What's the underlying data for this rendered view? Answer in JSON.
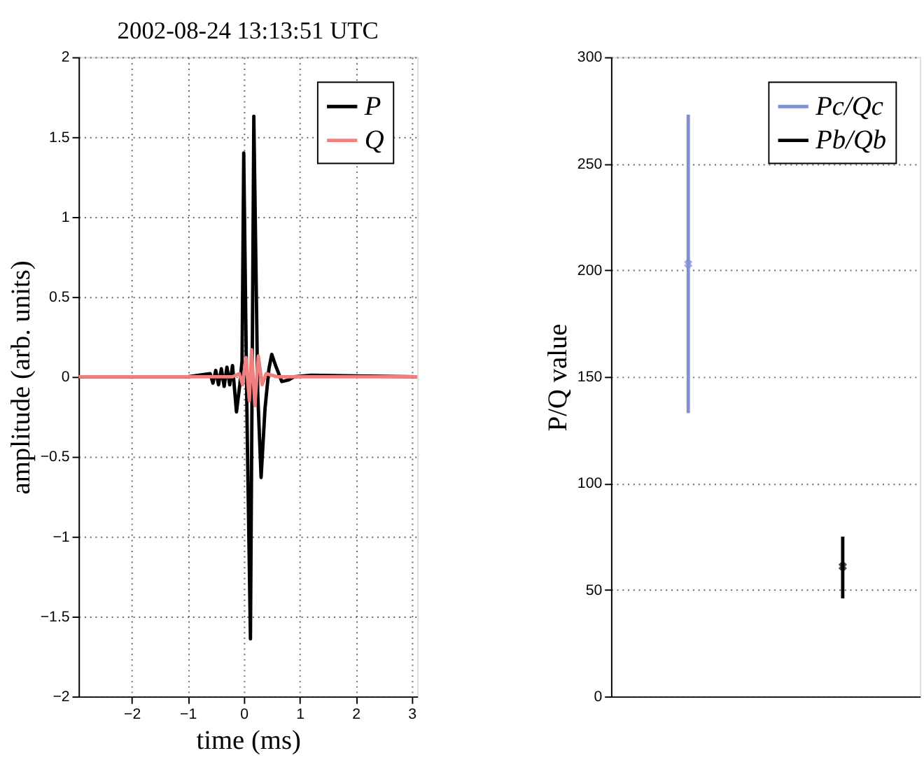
{
  "chart_data": [
    {
      "type": "line",
      "title": "2002-08-24 13:13:51 UTC",
      "xlabel": "time (ms)",
      "ylabel": "amplitude (arb. units)",
      "xlim": [
        -2.95,
        3.1
      ],
      "xticks": [
        -2,
        -1,
        0,
        1,
        2,
        3
      ],
      "ylim": [
        -2,
        2
      ],
      "yticks": [
        -2,
        -1.5,
        -1,
        -0.5,
        0,
        0.5,
        1,
        1.5,
        2
      ],
      "grid": true,
      "legend": "top right",
      "line_style": "solid",
      "marker": "none",
      "series": [
        {
          "name": "P",
          "color": "#000000",
          "x": [
            -2.95,
            -1.0,
            -0.6,
            -0.55,
            -0.5,
            -0.45,
            -0.4,
            -0.35,
            -0.3,
            -0.25,
            -0.2,
            -0.13,
            -0.07,
            -0.03,
            0.0,
            0.06,
            0.12,
            0.18,
            0.25,
            0.31,
            0.38,
            0.45,
            0.5,
            0.58,
            0.68,
            0.8,
            0.9,
            1.2,
            3.1
          ],
          "values": [
            0,
            0,
            0.02,
            -0.04,
            0.04,
            -0.05,
            0.05,
            -0.06,
            0.06,
            -0.05,
            0.07,
            -0.22,
            -0.05,
            0.1,
            1.4,
            -0.3,
            -1.64,
            1.63,
            -0.1,
            -0.63,
            -0.2,
            0.05,
            0.14,
            0.06,
            -0.03,
            -0.02,
            0,
            0.01,
            0
          ]
        },
        {
          "name": "Q",
          "color": "#f08080",
          "x": [
            -2.95,
            -0.2,
            -0.08,
            -0.02,
            0.04,
            0.1,
            0.14,
            0.2,
            0.26,
            0.33,
            0.4,
            0.6,
            3.1
          ],
          "values": [
            0,
            0,
            0.02,
            -0.05,
            0.12,
            -0.15,
            0.17,
            -0.18,
            0.13,
            -0.05,
            0.02,
            0,
            0
          ]
        }
      ]
    },
    {
      "type": "scatter",
      "ylabel": "P/Q value",
      "categories": [
        null,
        null
      ],
      "ylim": [
        0,
        300
      ],
      "yticks": [
        0,
        50,
        100,
        150,
        200,
        250,
        300
      ],
      "grid": "y",
      "legend": "top right",
      "marker": "cross",
      "series": [
        {
          "name": "Pc/Qc",
          "color": "#8090d0",
          "values": [
            203,
            null
          ],
          "errors": [
            [
              133,
              273
            ],
            null
          ]
        },
        {
          "name": "Pb/Qb",
          "color": "#000000",
          "values": [
            null,
            61
          ],
          "errors": [
            null,
            [
              46,
              75
            ]
          ]
        }
      ]
    }
  ]
}
